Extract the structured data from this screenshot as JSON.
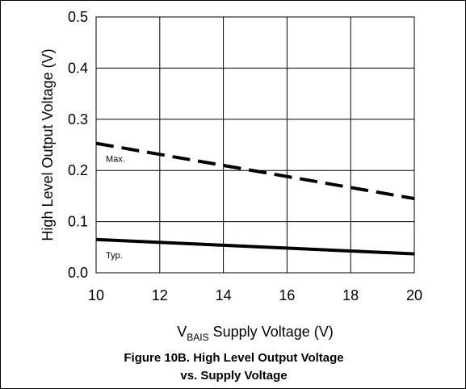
{
  "chart_data": {
    "type": "line",
    "title": "",
    "xlabel_main": "V",
    "xlabel_sub": "BAIS",
    "xlabel_rest": " Supply Voltage (V)",
    "ylabel": "High Level Output Voltage (V)",
    "xlim": [
      10,
      20
    ],
    "ylim": [
      0.0,
      0.5
    ],
    "xticks": [
      "10",
      "12",
      "14",
      "16",
      "18",
      "20"
    ],
    "yticks": [
      "0.0",
      "0.1",
      "0.2",
      "0.3",
      "0.4",
      "0.5"
    ],
    "grid": true,
    "series": [
      {
        "name": "Max.",
        "style": "dashed",
        "x": [
          10,
          20
        ],
        "y": [
          0.253,
          0.145
        ]
      },
      {
        "name": "Typ.",
        "style": "solid",
        "x": [
          10,
          20
        ],
        "y": [
          0.065,
          0.037
        ]
      }
    ]
  },
  "caption": {
    "line1": "Figure 10B. High Level  Output Voltage",
    "line2": "vs. Supply Voltage"
  },
  "colors": {
    "line": "#000000",
    "grid": "#000000",
    "background": "#ffffff"
  }
}
